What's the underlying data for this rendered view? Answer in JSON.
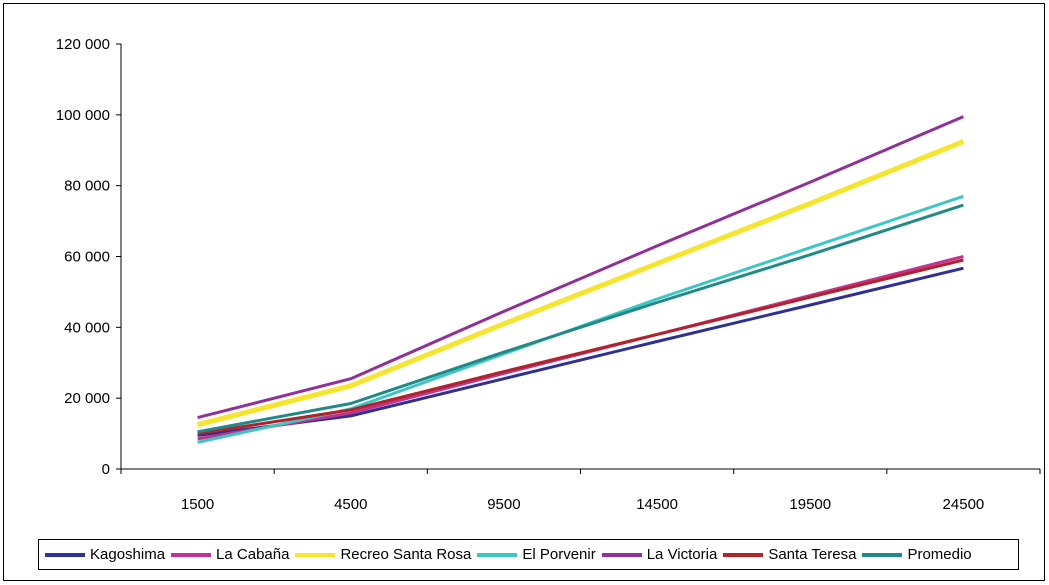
{
  "chart_data": {
    "type": "line",
    "title": "",
    "xlabel": "",
    "ylabel": "",
    "categories": [
      "1500",
      "4500",
      "9500",
      "14500",
      "19500",
      "24500"
    ],
    "ylim": [
      0,
      120000
    ],
    "yticks": [
      {
        "value": 0,
        "label": "0"
      },
      {
        "value": 20000,
        "label": "20 000"
      },
      {
        "value": 40000,
        "label": "40 000"
      },
      {
        "value": 60000,
        "label": "60 000"
      },
      {
        "value": 80000,
        "label": "80 000"
      },
      {
        "value": 100000,
        "label": "100 000"
      },
      {
        "value": 120000,
        "label": "120 000"
      }
    ],
    "grid": false,
    "legend_position": "bottom",
    "series": [
      {
        "name": "Kagoshima",
        "color": "#2e3192",
        "values": [
          9500,
          15000,
          25500,
          36000,
          46300,
          56700
        ]
      },
      {
        "name": "La Cabaña",
        "color": "#c2338f",
        "values": [
          8500,
          15800,
          27000,
          38000,
          49000,
          60000
        ]
      },
      {
        "name": "Recreo Santa Rosa",
        "color": "#f5e52c",
        "values": [
          12500,
          23500,
          41000,
          58000,
          75000,
          92500
        ]
      },
      {
        "name": "El Porvenir",
        "color": "#3cc7c3",
        "values": [
          7500,
          17000,
          32500,
          48000,
          62500,
          77000
        ]
      },
      {
        "name": "La Victoria",
        "color": "#8f3199",
        "values": [
          14500,
          25500,
          44500,
          63000,
          81000,
          99500
        ]
      },
      {
        "name": "Santa Teresa",
        "color": "#b0232a",
        "values": [
          10000,
          16700,
          27500,
          38000,
          48500,
          59000
        ]
      },
      {
        "name": "Promedio",
        "color": "#218a86",
        "values": [
          10500,
          18500,
          33000,
          47000,
          60500,
          74500
        ]
      }
    ]
  }
}
